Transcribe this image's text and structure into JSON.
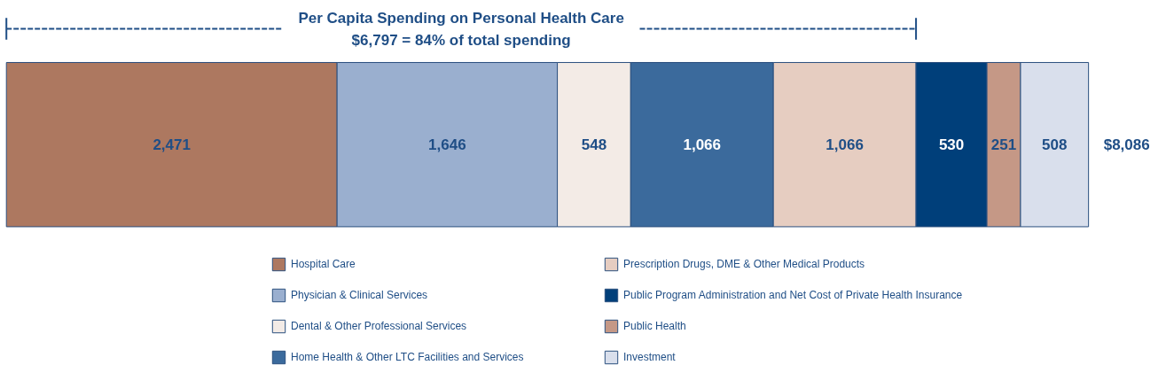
{
  "chart_data": {
    "type": "bar",
    "orientation": "horizontal",
    "stacked": true,
    "legend": "bottom",
    "grid": false,
    "tick_labels": false,
    "title": "Per Capita Spending on Personal Health Care",
    "subtitle": "$6,797 = 84% of total spending",
    "categories": [
      null
    ],
    "series": [
      {
        "name": "Hospital Care",
        "color": "#ad7860",
        "values": [
          2471
        ],
        "value_labels": [
          "2,471"
        ]
      },
      {
        "name": "Physician & Clinical Services",
        "color": "#9aafcf",
        "values": [
          1646
        ],
        "value_labels": [
          "1,646"
        ]
      },
      {
        "name": "Dental & Other Professional Services",
        "color": "#f3ebe6",
        "values": [
          548
        ],
        "value_labels": [
          "548"
        ]
      },
      {
        "name": "Home Health & Other LTC Facilities and Services",
        "color": "#3b6a9c",
        "values": [
          1066
        ],
        "value_labels": [
          "1,066"
        ]
      },
      {
        "name": "Prescription Drugs, DME & Other Medical Products",
        "color": "#e6cdc1",
        "values": [
          1066
        ],
        "value_labels": [
          "1,066"
        ]
      },
      {
        "name": "Public Program Administration and Net Cost of Private Health Insurance",
        "color": "#003f7a",
        "values": [
          530
        ],
        "value_labels": [
          "530"
        ]
      },
      {
        "name": "Public Health",
        "color": "#c59886",
        "values": [
          251
        ],
        "value_labels": [
          "251"
        ]
      },
      {
        "name": "Investment",
        "color": "#d9dfec",
        "values": [
          508
        ],
        "value_labels": [
          "508"
        ]
      }
    ],
    "totals": [
      "$8,086"
    ]
  }
}
